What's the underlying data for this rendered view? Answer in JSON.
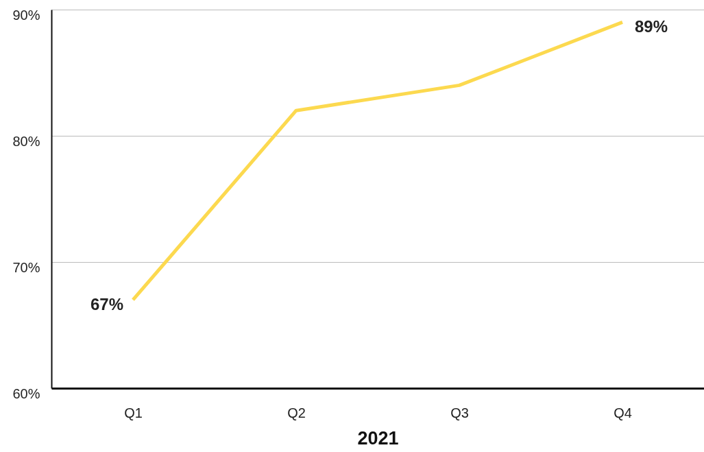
{
  "chart_data": {
    "type": "line",
    "xlabel": "2021",
    "categories": [
      "Q1",
      "Q2",
      "Q3",
      "Q4"
    ],
    "series": [
      {
        "color": "#fcd94f",
        "values": [
          67,
          82,
          84,
          89
        ],
        "value_labels": [
          "67%",
          null,
          null,
          "89%"
        ]
      }
    ],
    "ylim": [
      60,
      90
    ],
    "yticks": [
      {
        "value": 60,
        "label": "60%"
      },
      {
        "value": 70,
        "label": "70%"
      },
      {
        "value": 80,
        "label": "80%"
      },
      {
        "value": 90,
        "label": "90%"
      }
    ],
    "grid": "y",
    "marker": "none",
    "line_style": "solid"
  }
}
